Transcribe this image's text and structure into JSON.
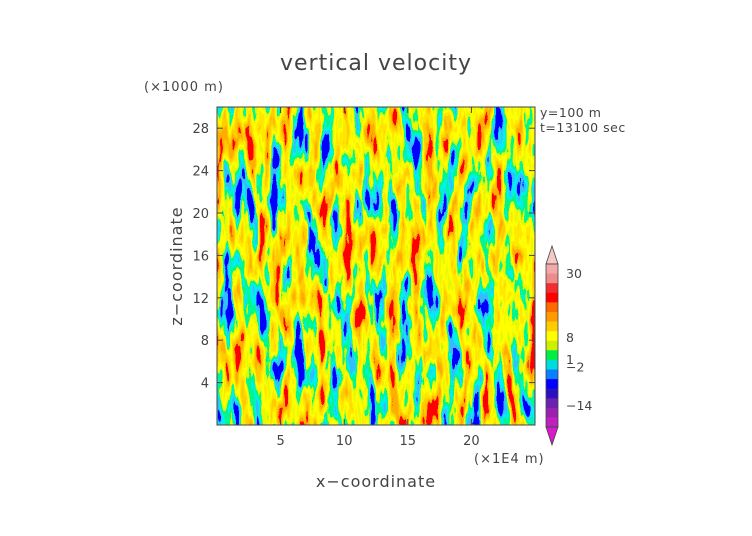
{
  "chart_data": {
    "type": "heatmap",
    "title": "vertical velocity",
    "xlabel": "x−coordinate",
    "ylabel": "z−coordinate",
    "x_unit": "(×1E4 m)",
    "y_unit": "(×1000 m)",
    "annotation_lines": [
      "y=100 m",
      "t=13100 sec"
    ],
    "xlim": [
      0,
      25
    ],
    "ylim": [
      0,
      30
    ],
    "x_ticks": [
      5,
      10,
      15,
      20
    ],
    "y_ticks": [
      4,
      8,
      12,
      16,
      20,
      24,
      28
    ],
    "colorbar": {
      "labeled_levels": [
        30,
        8,
        1,
        -2,
        -14
      ],
      "tick_labels": [
        "30",
        "8",
        "1",
        "−2",
        "−14"
      ],
      "colors": [
        "#f5c8c8",
        "#f3a8a8",
        "#ee8c8c",
        "#f03030",
        "#ff0000",
        "#ff6a00",
        "#ff9a00",
        "#ffcc00",
        "#ffff00",
        "#ccf000",
        "#00ee44",
        "#00dcdc",
        "#0a80ff",
        "#0000ff",
        "#2a10c0",
        "#6a20b0",
        "#9a20b0",
        "#c020c0",
        "#d81ac8"
      ]
    }
  },
  "colors": {
    "axis": "#444444",
    "background": "#ffffff",
    "palette": [
      "#0000ff",
      "#0a80ff",
      "#00dcdc",
      "#00ee44",
      "#ccf000",
      "#ffff00",
      "#ffcc00",
      "#ff9a00",
      "#ff6a00",
      "#ff0000"
    ]
  }
}
